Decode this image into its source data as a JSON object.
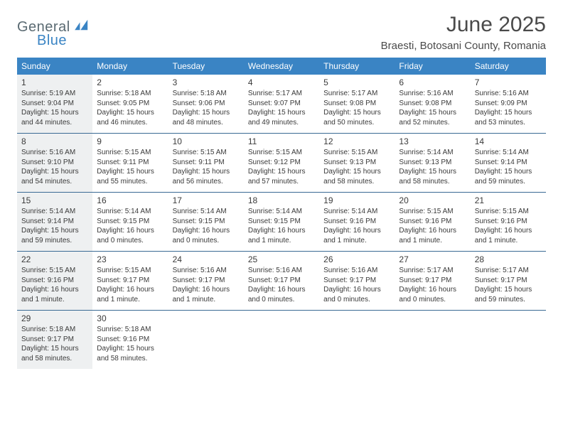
{
  "logo": {
    "word1": "General",
    "word2": "Blue"
  },
  "title": "June 2025",
  "location": "Braesti, Botosani County, Romania",
  "days_of_week": [
    "Sunday",
    "Monday",
    "Tuesday",
    "Wednesday",
    "Thursday",
    "Friday",
    "Saturday"
  ],
  "header_bg": "#3a84c4",
  "header_text_color": "#ffffff",
  "week_border_color": "#3a6a94",
  "shaded_bg": "#eef0f1",
  "text_color": "#3a3a3a",
  "daynum_fontsize": 12,
  "dayinfo_fontsize": 10,
  "days": [
    {
      "n": 1,
      "shaded": true,
      "sr": "5:19 AM",
      "ss": "9:04 PM",
      "dl": "15 hours and 44 minutes."
    },
    {
      "n": 2,
      "shaded": false,
      "sr": "5:18 AM",
      "ss": "9:05 PM",
      "dl": "15 hours and 46 minutes."
    },
    {
      "n": 3,
      "shaded": false,
      "sr": "5:18 AM",
      "ss": "9:06 PM",
      "dl": "15 hours and 48 minutes."
    },
    {
      "n": 4,
      "shaded": false,
      "sr": "5:17 AM",
      "ss": "9:07 PM",
      "dl": "15 hours and 49 minutes."
    },
    {
      "n": 5,
      "shaded": false,
      "sr": "5:17 AM",
      "ss": "9:08 PM",
      "dl": "15 hours and 50 minutes."
    },
    {
      "n": 6,
      "shaded": false,
      "sr": "5:16 AM",
      "ss": "9:08 PM",
      "dl": "15 hours and 52 minutes."
    },
    {
      "n": 7,
      "shaded": false,
      "sr": "5:16 AM",
      "ss": "9:09 PM",
      "dl": "15 hours and 53 minutes."
    },
    {
      "n": 8,
      "shaded": true,
      "sr": "5:16 AM",
      "ss": "9:10 PM",
      "dl": "15 hours and 54 minutes."
    },
    {
      "n": 9,
      "shaded": false,
      "sr": "5:15 AM",
      "ss": "9:11 PM",
      "dl": "15 hours and 55 minutes."
    },
    {
      "n": 10,
      "shaded": false,
      "sr": "5:15 AM",
      "ss": "9:11 PM",
      "dl": "15 hours and 56 minutes."
    },
    {
      "n": 11,
      "shaded": false,
      "sr": "5:15 AM",
      "ss": "9:12 PM",
      "dl": "15 hours and 57 minutes."
    },
    {
      "n": 12,
      "shaded": false,
      "sr": "5:15 AM",
      "ss": "9:13 PM",
      "dl": "15 hours and 58 minutes."
    },
    {
      "n": 13,
      "shaded": false,
      "sr": "5:14 AM",
      "ss": "9:13 PM",
      "dl": "15 hours and 58 minutes."
    },
    {
      "n": 14,
      "shaded": false,
      "sr": "5:14 AM",
      "ss": "9:14 PM",
      "dl": "15 hours and 59 minutes."
    },
    {
      "n": 15,
      "shaded": true,
      "sr": "5:14 AM",
      "ss": "9:14 PM",
      "dl": "15 hours and 59 minutes."
    },
    {
      "n": 16,
      "shaded": false,
      "sr": "5:14 AM",
      "ss": "9:15 PM",
      "dl": "16 hours and 0 minutes."
    },
    {
      "n": 17,
      "shaded": false,
      "sr": "5:14 AM",
      "ss": "9:15 PM",
      "dl": "16 hours and 0 minutes."
    },
    {
      "n": 18,
      "shaded": false,
      "sr": "5:14 AM",
      "ss": "9:15 PM",
      "dl": "16 hours and 1 minute."
    },
    {
      "n": 19,
      "shaded": false,
      "sr": "5:14 AM",
      "ss": "9:16 PM",
      "dl": "16 hours and 1 minute."
    },
    {
      "n": 20,
      "shaded": false,
      "sr": "5:15 AM",
      "ss": "9:16 PM",
      "dl": "16 hours and 1 minute."
    },
    {
      "n": 21,
      "shaded": false,
      "sr": "5:15 AM",
      "ss": "9:16 PM",
      "dl": "16 hours and 1 minute."
    },
    {
      "n": 22,
      "shaded": true,
      "sr": "5:15 AM",
      "ss": "9:16 PM",
      "dl": "16 hours and 1 minute."
    },
    {
      "n": 23,
      "shaded": false,
      "sr": "5:15 AM",
      "ss": "9:17 PM",
      "dl": "16 hours and 1 minute."
    },
    {
      "n": 24,
      "shaded": false,
      "sr": "5:16 AM",
      "ss": "9:17 PM",
      "dl": "16 hours and 1 minute."
    },
    {
      "n": 25,
      "shaded": false,
      "sr": "5:16 AM",
      "ss": "9:17 PM",
      "dl": "16 hours and 0 minutes."
    },
    {
      "n": 26,
      "shaded": false,
      "sr": "5:16 AM",
      "ss": "9:17 PM",
      "dl": "16 hours and 0 minutes."
    },
    {
      "n": 27,
      "shaded": false,
      "sr": "5:17 AM",
      "ss": "9:17 PM",
      "dl": "16 hours and 0 minutes."
    },
    {
      "n": 28,
      "shaded": false,
      "sr": "5:17 AM",
      "ss": "9:17 PM",
      "dl": "15 hours and 59 minutes."
    },
    {
      "n": 29,
      "shaded": true,
      "sr": "5:18 AM",
      "ss": "9:17 PM",
      "dl": "15 hours and 58 minutes."
    },
    {
      "n": 30,
      "shaded": false,
      "sr": "5:18 AM",
      "ss": "9:16 PM",
      "dl": "15 hours and 58 minutes."
    }
  ],
  "labels": {
    "sunrise": "Sunrise:",
    "sunset": "Sunset:",
    "daylight": "Daylight:"
  }
}
